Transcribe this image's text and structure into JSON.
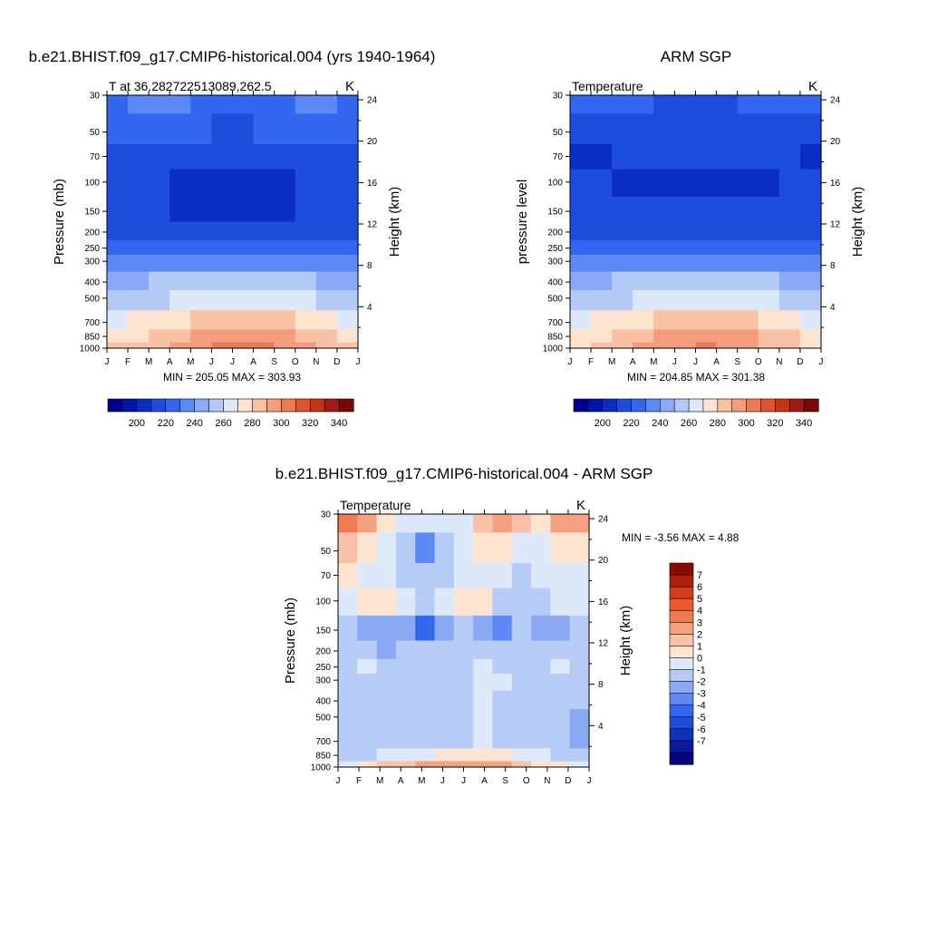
{
  "chart_data": [
    {
      "type": "heatmap",
      "title": "b.e21.BHIST.f09_g17.CMIP6-historical.004 (yrs 1940-1964)",
      "subtitle_left": "T at 36.282722513089,262.5",
      "subtitle_right": "K",
      "ylabel": "Pressure (mb)",
      "y2label": "Height (km)",
      "x_ticks": [
        "J",
        "F",
        "M",
        "A",
        "M",
        "J",
        "J",
        "A",
        "S",
        "O",
        "N",
        "D",
        "J"
      ],
      "y_ticks": [
        "30",
        "50",
        "70",
        "100",
        "150",
        "200",
        "250",
        "300",
        "400",
        "500",
        "700",
        "850",
        "1000"
      ],
      "y2_ticks": [
        "24",
        "20",
        "16",
        "12",
        "8",
        "4"
      ],
      "stats": "MIN = 205.05 MAX = 303.93",
      "colorbar_ticks": [
        "200",
        "220",
        "240",
        "260",
        "280",
        "300",
        "320",
        "340"
      ],
      "grid": [
        [
          228,
          232,
          233,
          232,
          226,
          224,
          224,
          225,
          226,
          230,
          230,
          228
        ],
        [
          224,
          222,
          222,
          221,
          220,
          219,
          219,
          220,
          220,
          221,
          222,
          224
        ],
        [
          219,
          217,
          216,
          214,
          213,
          213,
          213,
          213,
          213,
          214,
          217,
          219
        ],
        [
          219,
          214,
          210,
          209,
          209,
          208,
          208,
          208,
          208,
          211,
          218,
          219
        ],
        [
          219,
          217,
          210,
          209,
          209,
          208,
          208,
          208,
          209,
          215,
          219,
          219
        ],
        [
          219,
          218,
          215,
          213,
          212,
          212,
          212,
          212,
          214,
          218,
          219,
          219
        ],
        [
          226,
          226,
          226,
          226,
          225,
          224,
          224,
          224,
          225,
          226,
          226,
          226
        ],
        [
          234,
          235,
          236,
          237,
          238,
          238,
          238,
          238,
          238,
          237,
          235,
          234
        ],
        [
          246,
          248,
          251,
          253,
          255,
          256,
          256,
          256,
          255,
          252,
          248,
          246
        ],
        [
          254,
          256,
          258,
          261,
          264,
          266,
          267,
          266,
          264,
          260,
          256,
          254
        ],
        [
          268,
          270,
          273,
          276,
          280,
          283,
          284,
          283,
          281,
          276,
          272,
          269
        ],
        [
          276,
          279,
          283,
          287,
          291,
          295,
          296,
          295,
          292,
          287,
          281,
          277
        ],
        [
          280,
          284,
          289,
          294,
          298,
          302,
          303,
          302,
          298,
          291,
          285,
          281
        ]
      ]
    },
    {
      "type": "heatmap",
      "title": "ARM SGP",
      "subtitle_left": "Temperature",
      "subtitle_right": "K",
      "ylabel": "pressure level",
      "y2label": "Height (km)",
      "x_ticks": [
        "J",
        "F",
        "M",
        "A",
        "M",
        "J",
        "J",
        "A",
        "S",
        "O",
        "N",
        "D",
        "J"
      ],
      "y_ticks": [
        "30",
        "50",
        "70",
        "100",
        "150",
        "200",
        "250",
        "300",
        "400",
        "500",
        "700",
        "850",
        "1000"
      ],
      "y2_ticks": [
        "24",
        "20",
        "16",
        "12",
        "8",
        "4"
      ],
      "stats": "MIN = 204.85 MAX = 301.38",
      "colorbar_ticks": [
        "200",
        "220",
        "240",
        "260",
        "280",
        "300",
        "320",
        "340"
      ],
      "grid": [
        [
          221,
          222,
          222,
          221,
          219,
          218,
          218,
          219,
          220,
          222,
          222,
          221
        ],
        [
          216,
          214,
          213,
          213,
          213,
          213,
          213,
          213,
          214,
          214,
          215,
          216
        ],
        [
          208,
          209,
          211,
          211,
          211,
          211,
          211,
          211,
          211,
          211,
          212,
          208
        ],
        [
          212,
          210,
          209,
          209,
          208,
          207,
          207,
          207,
          208,
          209,
          212,
          212
        ],
        [
          219,
          218,
          217,
          216,
          213,
          212,
          212,
          212,
          214,
          217,
          219,
          219
        ],
        [
          219,
          219,
          219,
          218,
          217,
          216,
          216,
          216,
          217,
          218,
          219,
          219
        ],
        [
          226,
          226,
          226,
          226,
          225,
          224,
          224,
          224,
          225,
          226,
          226,
          226
        ],
        [
          234,
          235,
          236,
          237,
          238,
          238,
          238,
          238,
          238,
          237,
          235,
          234
        ],
        [
          246,
          248,
          251,
          253,
          255,
          256,
          256,
          256,
          255,
          252,
          248,
          246
        ],
        [
          254,
          256,
          258,
          261,
          264,
          266,
          267,
          266,
          264,
          260,
          256,
          254
        ],
        [
          268,
          270,
          273,
          276,
          280,
          283,
          284,
          283,
          281,
          276,
          272,
          269
        ],
        [
          276,
          278,
          282,
          286,
          290,
          293,
          294,
          293,
          290,
          285,
          280,
          277
        ],
        [
          278,
          282,
          287,
          291,
          295,
          299,
          300,
          299,
          295,
          289,
          283,
          279
        ]
      ]
    },
    {
      "type": "heatmap",
      "title": "b.e21.BHIST.f09_g17.CMIP6-historical.004 - ARM SGP",
      "subtitle_left": "Temperature",
      "subtitle_right": "K",
      "ylabel": "Pressure (mb)",
      "y2label": "Height (km)",
      "x_ticks": [
        "J",
        "F",
        "M",
        "A",
        "M",
        "J",
        "J",
        "A",
        "S",
        "O",
        "N",
        "D",
        "J"
      ],
      "y_ticks": [
        "30",
        "50",
        "70",
        "100",
        "150",
        "200",
        "250",
        "300",
        "400",
        "500",
        "700",
        "850",
        "1000"
      ],
      "y2_ticks": [
        "24",
        "20",
        "16",
        "12",
        "8",
        "4"
      ],
      "stats": "MIN =  -3.56 MAX =   4.88",
      "colorbar_ticks": [
        "7",
        "6",
        "5",
        "4",
        "3",
        "2",
        "1",
        "0",
        "-1",
        "-2",
        "-3",
        "-4",
        "-5",
        "-6",
        "-7"
      ],
      "grid": [
        [
          4.5,
          3.5,
          1.5,
          0.5,
          0.5,
          0.5,
          0.5,
          2.0,
          3.0,
          2.5,
          1.5,
          3.5,
          3.0
        ],
        [
          2.0,
          1.5,
          0.5,
          -0.5,
          -2.5,
          -0.5,
          0.5,
          1.5,
          1.5,
          0.5,
          0.5,
          1.5,
          1.0
        ],
        [
          1.0,
          0.5,
          0.5,
          -0.5,
          -1.0,
          -0.5,
          0.5,
          0.5,
          0.5,
          -0.5,
          0.5,
          0.5,
          0.5
        ],
        [
          0.5,
          1.0,
          1.0,
          0.5,
          -0.5,
          0.5,
          1.0,
          1.0,
          -0.5,
          -0.5,
          -1.0,
          0.5,
          0.5
        ],
        [
          -1.0,
          -1.5,
          -1.5,
          -2.0,
          -3.5,
          -2.0,
          -1.0,
          -1.5,
          -2.5,
          -1.0,
          -1.5,
          -2.0,
          -1.0
        ],
        [
          -1.0,
          -1.0,
          -1.5,
          -1.0,
          -1.0,
          -1.0,
          -0.5,
          -0.5,
          -1.0,
          -1.0,
          -1.0,
          -1.0,
          -1.0
        ],
        [
          -0.5,
          0.5,
          -0.5,
          -1.0,
          -0.5,
          -0.5,
          -0.5,
          0.5,
          -0.5,
          -1.0,
          -0.5,
          0.5,
          -0.5
        ],
        [
          -1.0,
          -0.5,
          -1.0,
          -1.0,
          -0.5,
          -0.5,
          -0.5,
          0.5,
          0.5,
          -0.5,
          -0.5,
          -1.0,
          -1.0
        ],
        [
          -1.0,
          -1.0,
          -1.0,
          -1.0,
          -0.5,
          -0.5,
          -0.5,
          0.5,
          -0.5,
          -0.5,
          -0.5,
          -1.0,
          -1.0
        ],
        [
          -1.0,
          -1.0,
          -1.0,
          -0.5,
          -0.5,
          -0.5,
          -0.5,
          0.5,
          -0.5,
          -0.5,
          -0.5,
          -1.0,
          -1.5
        ],
        [
          -1.0,
          -1.0,
          -1.0,
          -0.5,
          -0.5,
          -0.5,
          -0.5,
          0.5,
          -0.5,
          -0.5,
          -0.5,
          -1.0,
          -1.5
        ],
        [
          -1.0,
          -0.5,
          0.5,
          0.5,
          0.5,
          1.5,
          1.5,
          1.5,
          1.0,
          0.5,
          0.5,
          -0.5,
          -1.0
        ],
        [
          0.5,
          1.5,
          2.0,
          2.5,
          3.0,
          3.5,
          3.5,
          3.5,
          3.0,
          2.0,
          1.5,
          1.0,
          0.5
        ]
      ]
    }
  ],
  "colors": {
    "temp_scale": [
      "#00008f",
      "#0015a8",
      "#0a2ec4",
      "#1f4ddb",
      "#3366ee",
      "#5c89f5",
      "#8aa9f7",
      "#b5c9f7",
      "#dce7fa",
      "#fde4d0",
      "#f9c1a4",
      "#f49c7c",
      "#ec7a57",
      "#e1532d",
      "#c83318",
      "#a01b10",
      "#7a0a05"
    ],
    "diff_scale": [
      "#050580",
      "#0a1a9c",
      "#0f31bb",
      "#1f4ddb",
      "#3366ee",
      "#5c89f5",
      "#8aaaf5",
      "#b6ccf7",
      "#dde9fb",
      "#fde4d0",
      "#f9c2a8",
      "#f5a07e",
      "#f17a50",
      "#ec5a2d",
      "#d43c15",
      "#b0200b",
      "#8c0a00"
    ]
  }
}
